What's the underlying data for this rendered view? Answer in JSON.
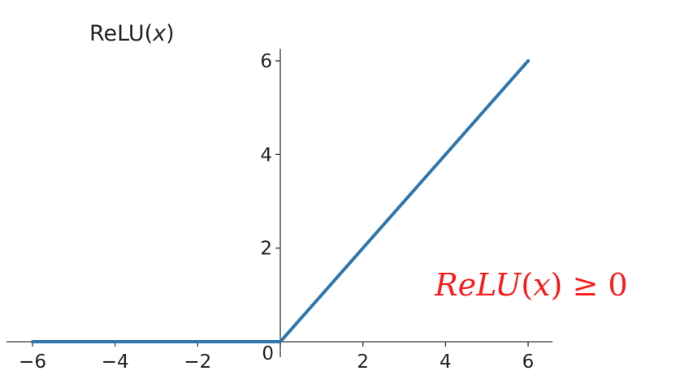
{
  "chart_data": {
    "type": "line",
    "title": "ReLU(x)",
    "title_parts": {
      "prefix": "ReLU(",
      "variable": "x",
      "suffix": ")"
    },
    "xlabel": "",
    "ylabel": "",
    "xlim": [
      -6,
      6
    ],
    "ylim": [
      0,
      6
    ],
    "x_ticks": [
      -6,
      -4,
      -2,
      0,
      2,
      4,
      6
    ],
    "x_tick_labels": [
      "−6",
      "−4",
      "−2",
      "0",
      "2",
      "4",
      "6"
    ],
    "y_ticks": [
      2,
      4,
      6
    ],
    "y_tick_labels": [
      "2",
      "4",
      "6"
    ],
    "axes_style": "centered-spines",
    "grid": false,
    "series": [
      {
        "color": "#2f77ad",
        "x": [
          -6,
          0,
          6
        ],
        "y": [
          0,
          0,
          6
        ]
      }
    ],
    "annotation": {
      "prefix": "ReLU",
      "open": "(",
      "variable": "x",
      "close": ")",
      "relation": " ≥ 0",
      "color": "#ff1a1a"
    }
  }
}
